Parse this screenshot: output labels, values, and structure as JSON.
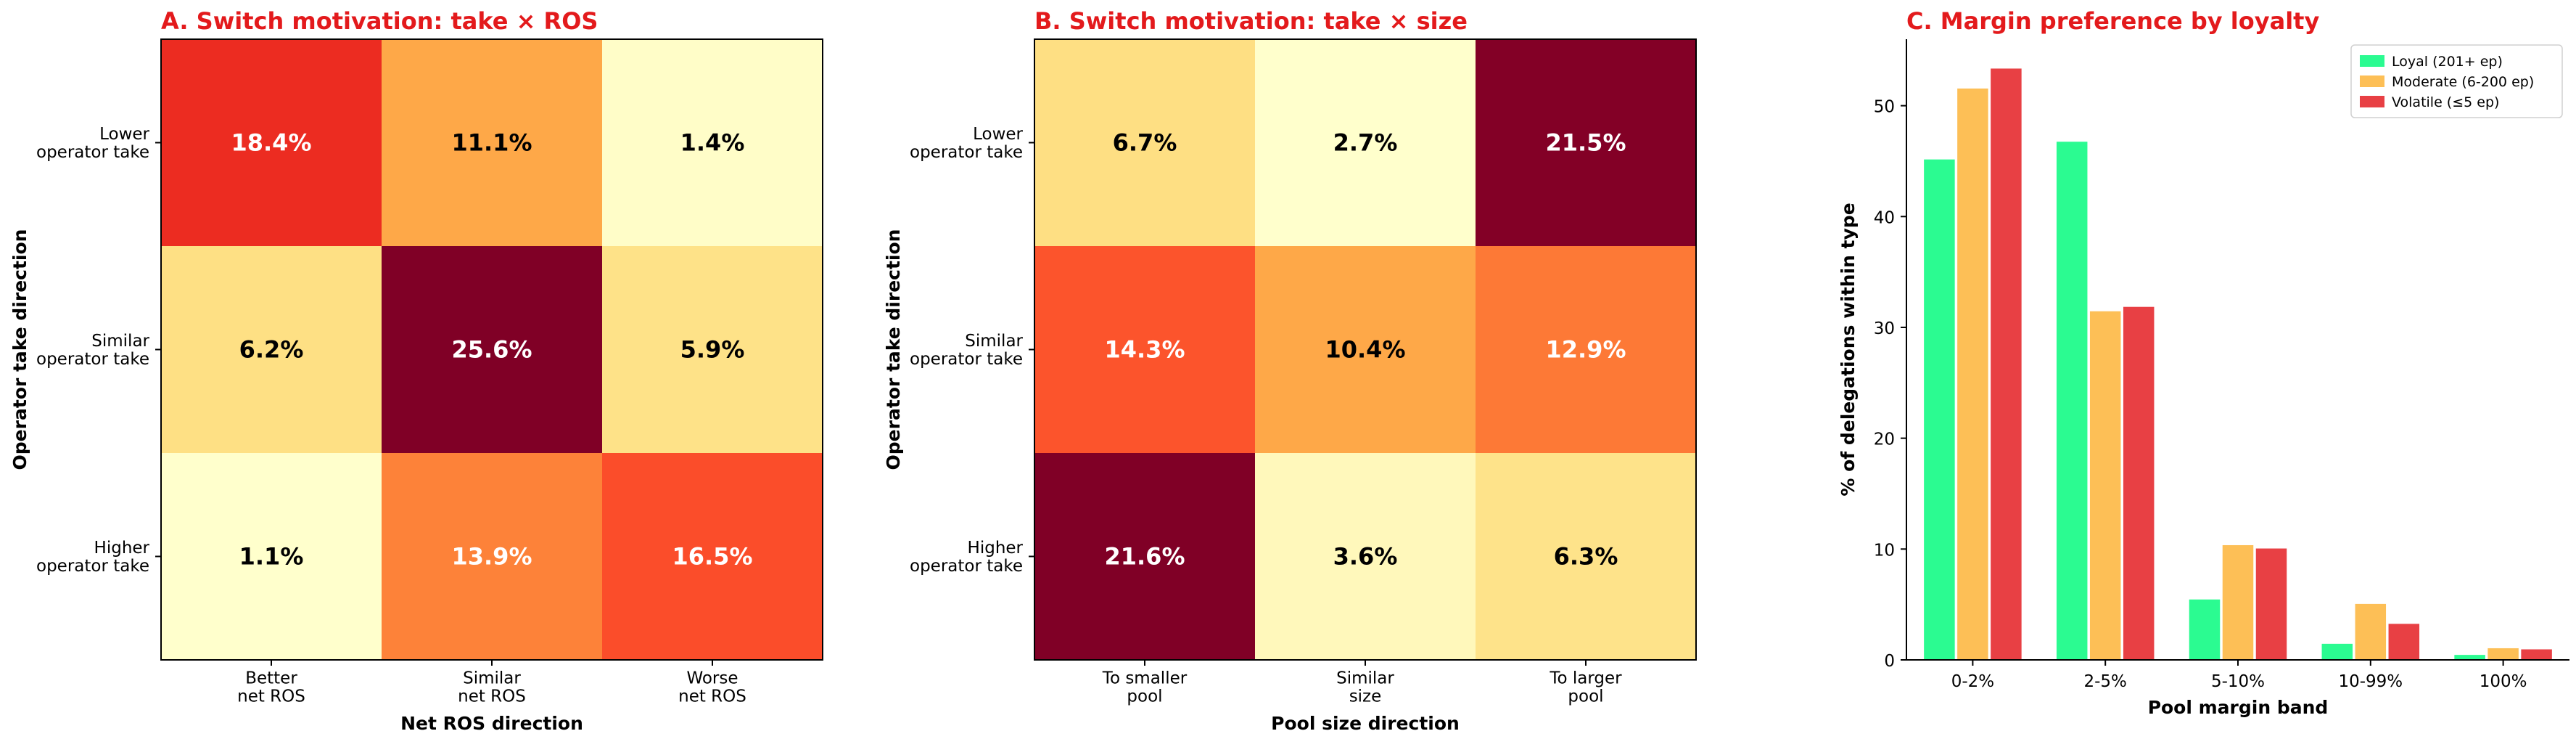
{
  "chart_data": [
    {
      "type": "heatmap",
      "title": "A. Switch motivation: take × ROS",
      "xlabel": "Net ROS direction",
      "ylabel": "Operator take direction",
      "x_categories": [
        "Better\nnet ROS",
        "Similar\nnet ROS",
        "Worse\nnet ROS"
      ],
      "y_categories": [
        "Lower\noperator take",
        "Similar\noperator take",
        "Higher\noperator take"
      ],
      "values": [
        [
          18.4,
          11.1,
          1.4
        ],
        [
          6.2,
          25.6,
          5.9
        ],
        [
          1.1,
          13.9,
          16.5
        ]
      ],
      "labels": [
        [
          "18.4%",
          "11.1%",
          "1.4%"
        ],
        [
          "6.2%",
          "25.6%",
          "5.9%"
        ],
        [
          "1.1%",
          "13.9%",
          "16.5%"
        ]
      ],
      "colormap": "YlOrRd",
      "vmin": 1.1,
      "vmax": 25.6
    },
    {
      "type": "heatmap",
      "title": "B. Switch motivation: take × size",
      "xlabel": "Pool size direction",
      "ylabel": "Operator take direction",
      "x_categories": [
        "To smaller\npool",
        "Similar\nsize",
        "To larger\npool"
      ],
      "y_categories": [
        "Lower\noperator take",
        "Similar\noperator take",
        "Higher\noperator take"
      ],
      "values": [
        [
          6.7,
          2.7,
          21.5
        ],
        [
          14.3,
          10.4,
          12.9
        ],
        [
          21.6,
          3.6,
          6.3
        ]
      ],
      "labels": [
        [
          "6.7%",
          "2.7%",
          "21.5%"
        ],
        [
          "14.3%",
          "10.4%",
          "12.9%"
        ],
        [
          "21.6%",
          "3.6%",
          "6.3%"
        ]
      ],
      "colormap": "YlOrRd",
      "vmin": 2.7,
      "vmax": 21.6
    },
    {
      "type": "bar",
      "title": "C. Margin preference by loyalty",
      "xlabel": "Pool margin band",
      "ylabel": "% of delegations within type",
      "categories": [
        "0-2%",
        "2-5%",
        "5-10%",
        "10-99%",
        "100%"
      ],
      "ylim": [
        0,
        56
      ],
      "yticks": [
        0,
        10,
        20,
        30,
        40,
        50
      ],
      "grid": false,
      "legend_position": "top-right",
      "series": [
        {
          "name": "Loyal (201+ ep)",
          "color": "#2bfb91",
          "values": [
            45.2,
            46.8,
            5.5,
            1.5,
            0.5
          ]
        },
        {
          "name": "Moderate (6-200 ep)",
          "color": "#fdbf56",
          "values": [
            51.6,
            31.5,
            10.4,
            5.1,
            1.1
          ]
        },
        {
          "name": "Volatile (≤5 ep)",
          "color": "#e84044",
          "values": [
            53.4,
            31.9,
            10.1,
            3.3,
            1.0
          ]
        }
      ]
    }
  ]
}
